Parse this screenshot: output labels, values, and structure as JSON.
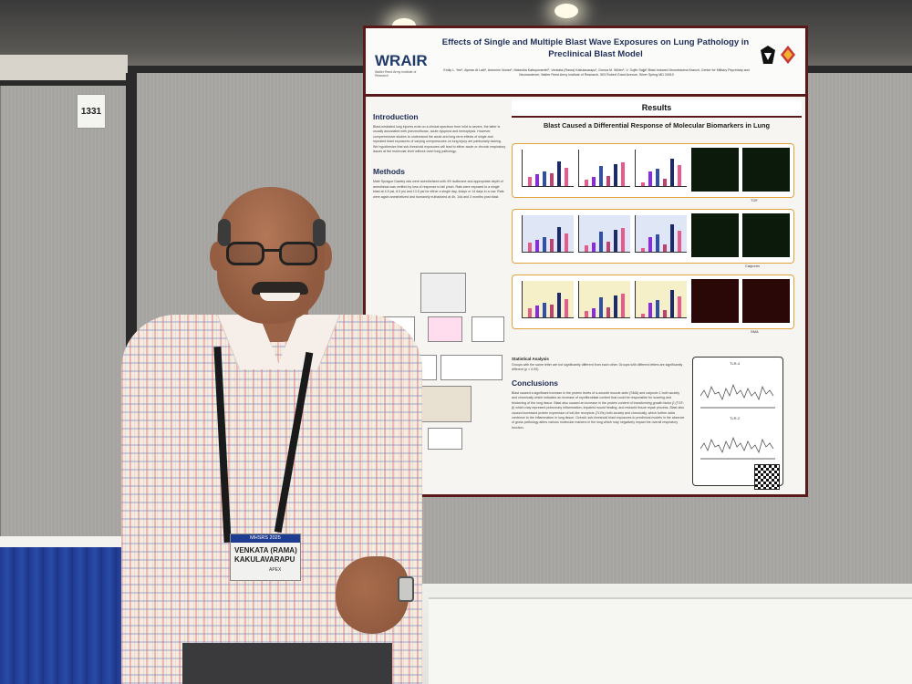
{
  "booth": {
    "number": "1331"
  },
  "poster": {
    "title": "Effects of Single and Multiple Blast Wave Exposures on Lung Pathology in Preclinical Blast Model",
    "authors": "Emily L. Yee¹, Ayman Al Laiti¹, Antonine Nunez¹, Malavika Kattupuramthi¹, Venkata (Rama) Kakulavarapu¹, Donna M. Wilder¹, V. Sujith Sajja¹ Blast Induced Neurotrauma Branch, Center for Military Psychiatry and Neuroscience, Walter Reed Army Institute of Research, 503 Robert Grant Avenue, Silver Spring MD 20910",
    "logo": "WRAIR",
    "logo_sub": "Walter Reed Army Institute of Research",
    "intro_heading": "Introduction",
    "intro_text": "Blast-mediated lung injuries exist on a clinical spectrum from mild to severe, the latter is usually associated with pneumothorax, acute dyspnea and hemoptysis. However, comprehensive studies to understand the acute and long-term effects of single and repeated blast exposures of varying overpressures on lung injury are particularly lacking. We hypothesize that sub-threshold exposures will lead to either acute or chronic respiratory issues at the molecular level without overt lung pathology.",
    "methods_heading": "Methods",
    "methods_text": "Male Sprague Dawley rats were anesthetized with 4% isoflurane and appropriate depth of anesthesia was verified by loss of response to tail pinch. Rats were exposed to a single blast at 4.5 psi, 8.5 psi and 13.5 psi for either a single day, 4days or 14 days in a row. Rats were again anesthetized and humanely euthanized at 4h, 14d and 3 months post blast.",
    "results_heading": "Results",
    "results_subheading": "Blast Caused a Differential Response of Molecular Biomarkers in Lung",
    "marker_labels": [
      "TGF",
      "Calponin",
      "SMA"
    ],
    "micro_labels": [
      "Sham",
      "Blast"
    ],
    "stat_heading": "Statistical Analysis",
    "stat_text": "Groups with the same letter are not significantly different from each other. Groups with different letters are significantly different (p < 0.05)",
    "conclusions_heading": "Conclusions",
    "conclusions_text": "Blast caused a significant increase in the protein levels of α-smooth muscle actin (SMA) and calponin 1 both acutely and chronically which indicates an increase of myofibroblast content that could be responsible for scarring and thickening of the lung tissue. Blast also caused an increase in the protein content of transforming growth factor β (TGF-β) which may represent pulmonary inflammation, impaired would healing, and reduced tissue repair process. Blast also caused increased protein expression of toll-like receptors (TLRs) both acutely and chronically, which further adds credence to the inflammation in lung tissue. Overall, sub-threshold blast exposures to preclinical models in the absence of gross pathology alters various molecular markers in the lung which may negatively impact the overall respiratory function.",
    "graph_labels": [
      "TLR-4",
      "TLR-2"
    ],
    "bar_colors": [
      "#e65a8c",
      "#8a2be2",
      "#2f4fa8",
      "#c04070",
      "#1a2a6c"
    ]
  },
  "badge": {
    "event": "MHSRS 2025",
    "first_name": "VENKATA (RAMA)",
    "last_name": "KAKULAVARAPU",
    "org": "APEX"
  },
  "colors": {
    "poster_border": "#5a1a1a",
    "title_blue": "#1f2f5a",
    "panel_gray": "#a9a7a3",
    "table_blue": "#1f3c93",
    "chart_frame": "#e0a23a"
  }
}
